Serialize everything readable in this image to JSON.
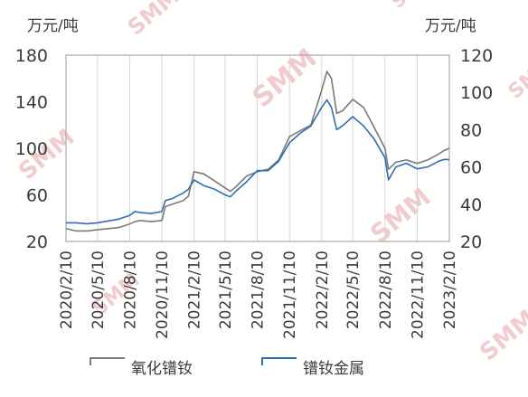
{
  "chart_data": {
    "type": "line",
    "title": "",
    "left_unit": "万元/吨",
    "right_unit": "万元/吨",
    "y_left": {
      "ticks": [
        20,
        60,
        100,
        140,
        180
      ],
      "range": [
        20,
        180
      ]
    },
    "y_right": {
      "ticks": [
        20,
        40,
        60,
        80,
        100,
        120
      ],
      "range": [
        20,
        120
      ]
    },
    "x_ticks": [
      "2020/2/10",
      "2020/5/10",
      "2020/8/10",
      "2020/11/10",
      "2021/2/10",
      "2021/5/10",
      "2021/8/10",
      "2021/11/10",
      "2022/2/10",
      "2022/5/10",
      "2022/8/10",
      "2022/11/10",
      "2023/2/10"
    ],
    "grid": "vertical",
    "legend_position": "bottom",
    "series": [
      {
        "name": "氧化镨钕",
        "axis": "left",
        "color": "#7a7a7a",
        "x": [
          "2020/2/10",
          "2020/3/10",
          "2020/4/10",
          "2020/5/10",
          "2020/6/10",
          "2020/7/10",
          "2020/8/10",
          "2020/8/25",
          "2020/9/10",
          "2020/10/10",
          "2020/11/10",
          "2020/11/20",
          "2020/12/10",
          "2021/1/10",
          "2021/1/25",
          "2021/2/10",
          "2021/3/10",
          "2021/4/10",
          "2021/5/10",
          "2021/5/25",
          "2021/6/10",
          "2021/7/10",
          "2021/8/10",
          "2021/9/10",
          "2021/10/10",
          "2021/11/10",
          "2021/12/10",
          "2022/1/10",
          "2022/2/10",
          "2022/2/25",
          "2022/3/10",
          "2022/3/25",
          "2022/4/10",
          "2022/5/10",
          "2022/6/10",
          "2022/7/10",
          "2022/8/10",
          "2022/8/20",
          "2022/9/10",
          "2022/10/10",
          "2022/11/10",
          "2022/12/10",
          "2023/1/10",
          "2023/1/25",
          "2023/2/10"
        ],
        "y": [
          31,
          29,
          29,
          30,
          31,
          32,
          35,
          37,
          38,
          37,
          38,
          50,
          52,
          55,
          59,
          80,
          78,
          72,
          66,
          63,
          67,
          76,
          80,
          82,
          90,
          110,
          115,
          120,
          150,
          166,
          160,
          130,
          132,
          142,
          135,
          118,
          100,
          82,
          88,
          90,
          87,
          90,
          95,
          98,
          100
        ]
      },
      {
        "name": "镨钕金属",
        "axis": "right",
        "color": "#2f6db5",
        "x": [
          "2020/2/10",
          "2020/3/10",
          "2020/4/10",
          "2020/5/10",
          "2020/6/10",
          "2020/7/10",
          "2020/8/10",
          "2020/8/25",
          "2020/9/10",
          "2020/10/10",
          "2020/11/10",
          "2020/11/20",
          "2020/12/10",
          "2021/1/10",
          "2021/1/25",
          "2021/2/10",
          "2021/3/10",
          "2021/4/10",
          "2021/5/10",
          "2021/5/25",
          "2021/6/10",
          "2021/7/10",
          "2021/8/10",
          "2021/9/10",
          "2021/10/10",
          "2021/11/10",
          "2021/12/10",
          "2022/1/10",
          "2022/2/10",
          "2022/2/25",
          "2022/3/10",
          "2022/3/25",
          "2022/4/10",
          "2022/5/10",
          "2022/6/10",
          "2022/7/10",
          "2022/8/10",
          "2022/8/20",
          "2022/9/10",
          "2022/10/10",
          "2022/11/10",
          "2022/12/10",
          "2023/1/10",
          "2023/1/25",
          "2023/2/10"
        ],
        "y": [
          30,
          30,
          29.5,
          30,
          31,
          32,
          34,
          36,
          35.5,
          35,
          36,
          42,
          43,
          46,
          48,
          53,
          50,
          48,
          45,
          44,
          47,
          52,
          58,
          58,
          63,
          73,
          78,
          82,
          92,
          96,
          92,
          80,
          82,
          87,
          82,
          75,
          65,
          53,
          60,
          62,
          59,
          60,
          63,
          64,
          64
        ]
      }
    ]
  },
  "watermark": "SMM"
}
